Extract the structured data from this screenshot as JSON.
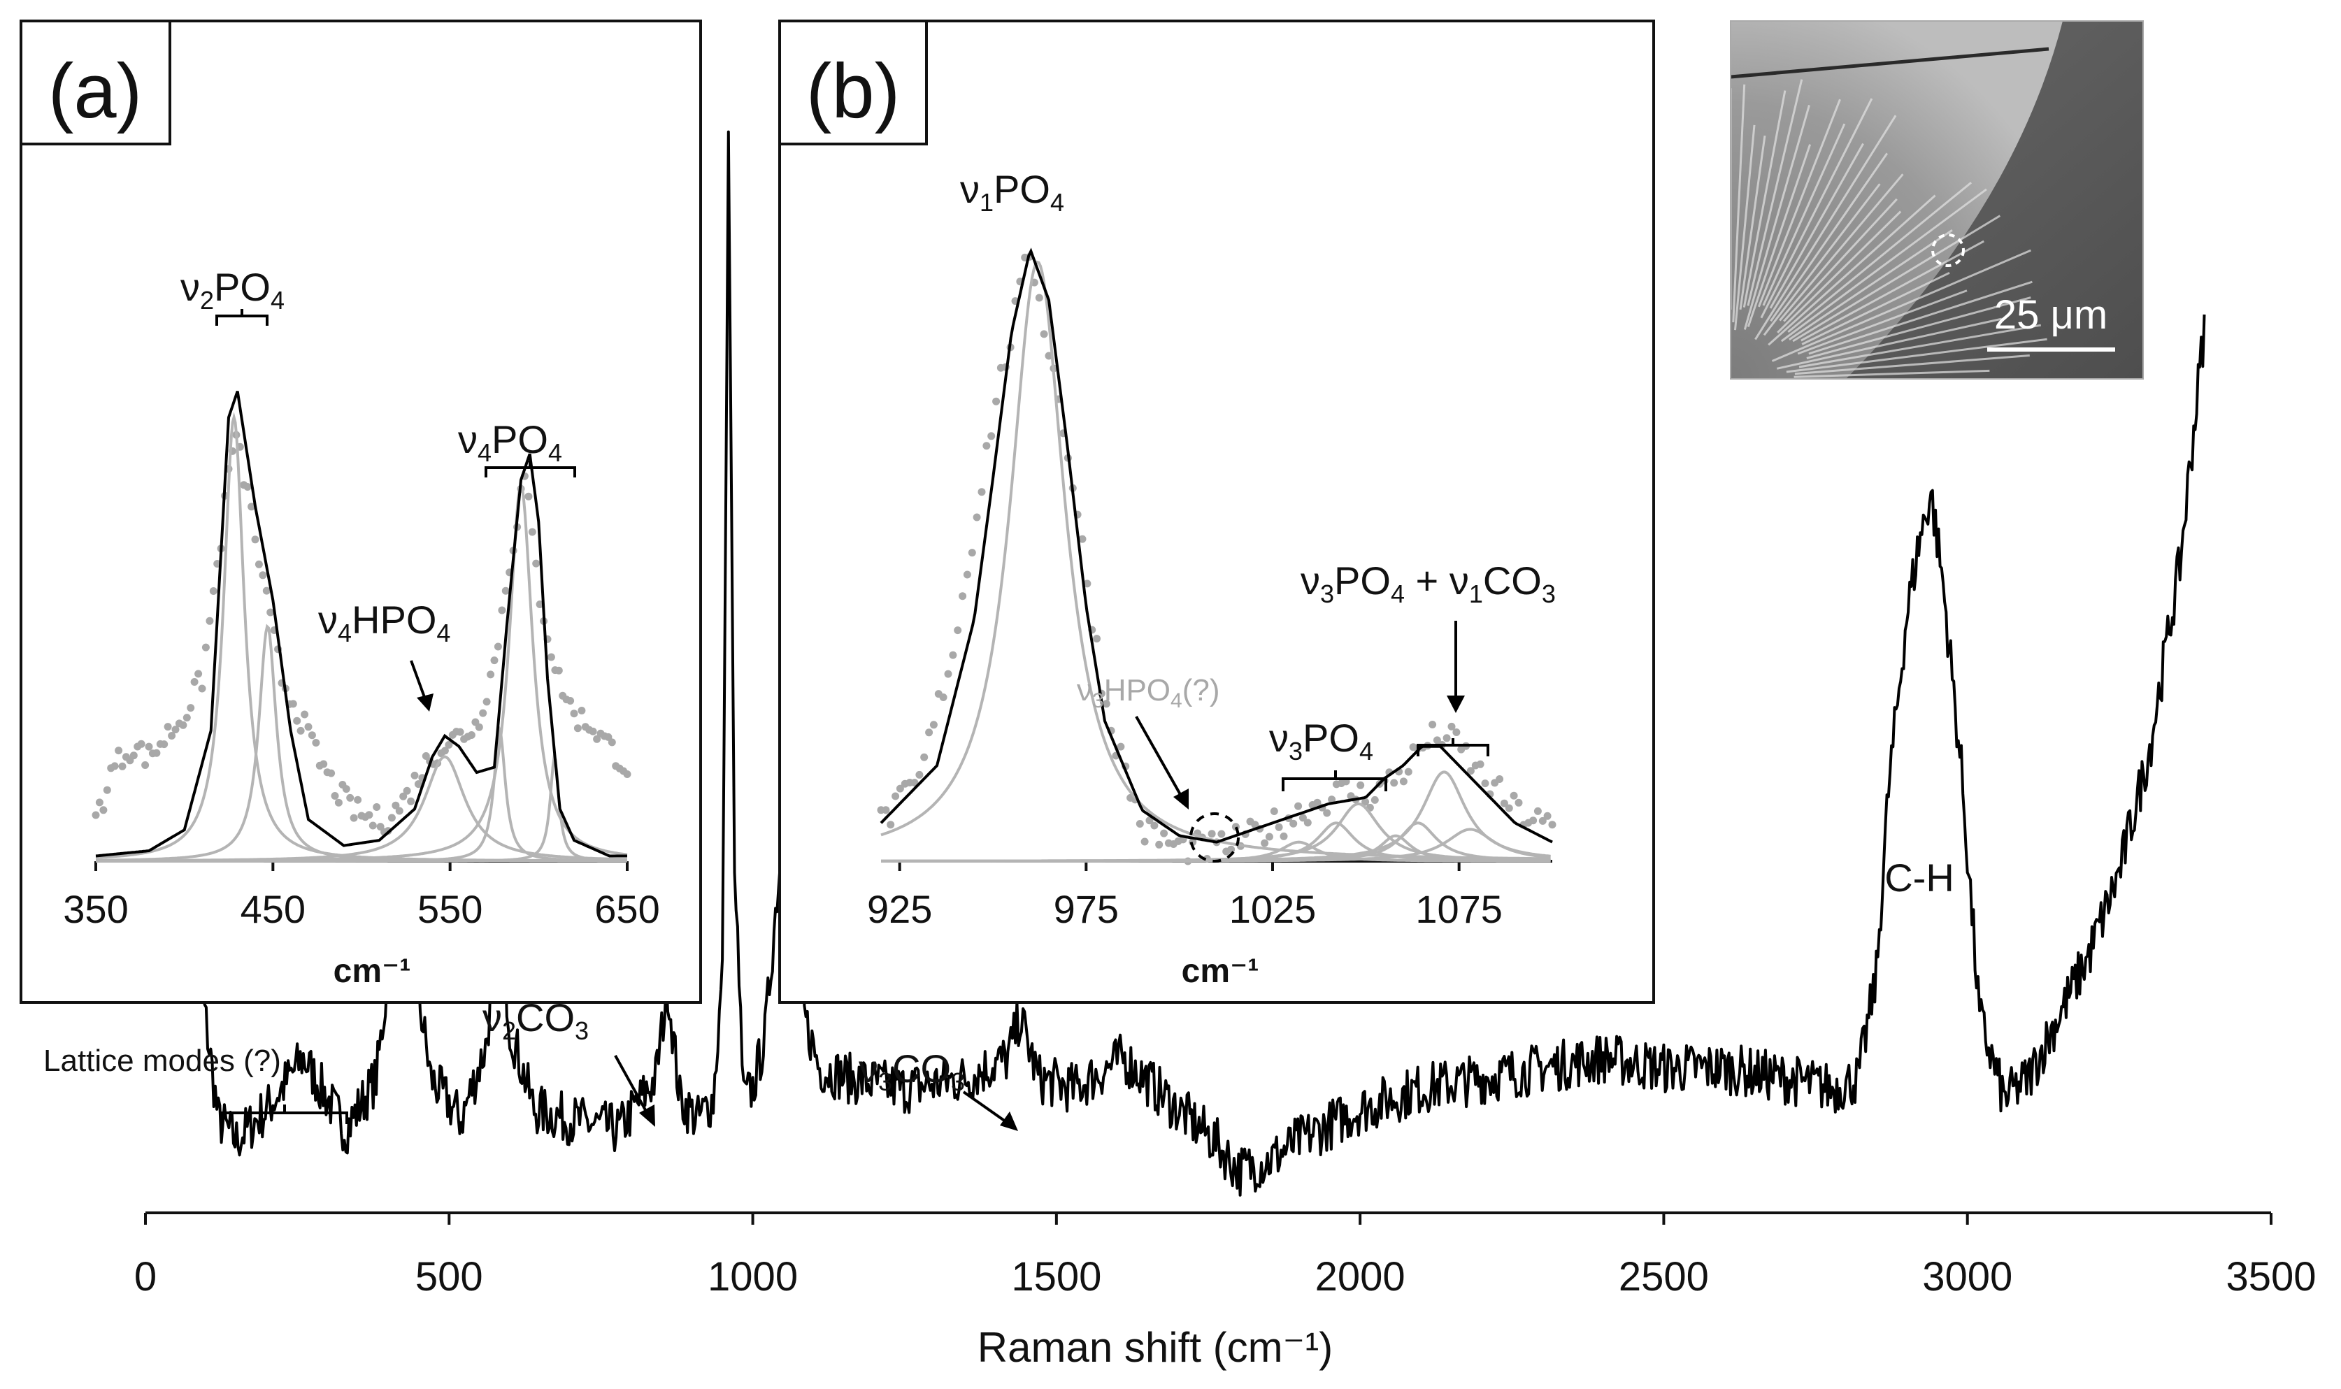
{
  "main": {
    "x_axis_label": "Raman shift (cm⁻¹)",
    "x_ticks": [
      "0",
      "500",
      "1000",
      "1500",
      "2000",
      "2500",
      "3000",
      "3500"
    ]
  },
  "annotations": {
    "lattice": "Lattice modes (?)",
    "v2co3": {
      "sym": "ν",
      "sub": "2",
      "mol": "CO",
      "sub2": "3"
    },
    "v3co3": {
      "sym": "ν",
      "sub": "3",
      "mol": "CO",
      "sub2": "3"
    },
    "ch": "C-H"
  },
  "panel_a": {
    "label": "(a)",
    "x_ticks": [
      "350",
      "450",
      "550",
      "650"
    ],
    "x_unit": "cm⁻¹",
    "v2po4": {
      "sym": "ν",
      "sub": "2",
      "mol": "PO",
      "sub2": "4"
    },
    "v4po4": {
      "sym": "ν",
      "sub": "4",
      "mol": "PO",
      "sub2": "4"
    },
    "v4hpo4": {
      "sym": "ν",
      "sub": "4",
      "mol": "HPO",
      "sub2": "4"
    }
  },
  "panel_b": {
    "label": "(b)",
    "x_ticks": [
      "925",
      "975",
      "1025",
      "1075"
    ],
    "x_unit": "cm⁻¹",
    "v1po4": {
      "sym": "ν",
      "sub": "1",
      "mol": "PO",
      "sub2": "4"
    },
    "v3hpo4": {
      "sym": "ν",
      "sub": "3",
      "mol": "HPO",
      "sub2": "4",
      "tail": "(?)"
    },
    "v3po4": {
      "sym": "ν",
      "sub": "3",
      "mol": "PO",
      "sub2": "4"
    },
    "v3po4_v1co3": {
      "sym": "ν",
      "sub": "3",
      "mol": "PO",
      "sub2": "4",
      "plus": " + ",
      "sym2": "ν",
      "sub3": "1",
      "mol2": "CO",
      "sub4": "3"
    }
  },
  "inset": {
    "scalebar": "25 μm"
  },
  "colors": {
    "trace": "#000000",
    "fit_component": "#b4b4b4",
    "raw_points": "#a8a8a8",
    "sem_background": "#5e5e5e"
  },
  "chart_data": [
    {
      "type": "line",
      "id": "main",
      "xlim": [
        0,
        3500
      ],
      "x": [
        70,
        90,
        120,
        150,
        200,
        260,
        330,
        380,
        410,
        425,
        440,
        470,
        520,
        560,
        585,
        600,
        640,
        700,
        780,
        840,
        860,
        880,
        910,
        935,
        950,
        960,
        970,
        985,
        1000,
        1020,
        1040,
        1060,
        1070,
        1085,
        1110,
        1160,
        1250,
        1350,
        1420,
        1440,
        1470,
        1530,
        1610,
        1700,
        1760,
        1800,
        1850,
        1900,
        2000,
        2100,
        2200,
        2300,
        2400,
        2500,
        2600,
        2700,
        2780,
        2820,
        2850,
        2870,
        2900,
        2920,
        2940,
        2960,
        2990,
        3020,
        3060,
        3100,
        3150,
        3200,
        3250,
        3300,
        3350,
        3390
      ],
      "y": [
        0.34,
        0.2,
        0.06,
        0.04,
        0.07,
        0.12,
        0.05,
        0.1,
        0.25,
        0.42,
        0.22,
        0.1,
        0.06,
        0.13,
        0.25,
        0.15,
        0.07,
        0.06,
        0.05,
        0.1,
        0.19,
        0.08,
        0.06,
        0.08,
        0.2,
        1.02,
        0.3,
        0.08,
        0.09,
        0.14,
        0.28,
        0.39,
        0.35,
        0.16,
        0.11,
        0.1,
        0.09,
        0.1,
        0.12,
        0.16,
        0.1,
        0.09,
        0.12,
        0.07,
        0.04,
        0.01,
        0.02,
        0.04,
        0.07,
        0.09,
        0.1,
        0.11,
        0.12,
        0.11,
        0.11,
        0.1,
        0.09,
        0.1,
        0.2,
        0.38,
        0.55,
        0.62,
        0.67,
        0.58,
        0.4,
        0.16,
        0.08,
        0.1,
        0.16,
        0.22,
        0.3,
        0.42,
        0.6,
        0.83
      ]
    },
    {
      "type": "line",
      "id": "panel_a",
      "xlim": [
        350,
        650
      ],
      "fit": {
        "x": [
          350,
          380,
          400,
          415,
          425,
          430,
          440,
          450,
          460,
          470,
          490,
          510,
          530,
          540,
          547,
          555,
          565,
          575,
          582,
          590,
          595,
          600,
          605,
          612,
          620,
          640,
          650
        ],
        "y": [
          0.01,
          0.02,
          0.06,
          0.25,
          0.85,
          0.9,
          0.68,
          0.5,
          0.25,
          0.08,
          0.03,
          0.04,
          0.1,
          0.2,
          0.24,
          0.22,
          0.17,
          0.18,
          0.45,
          0.73,
          0.78,
          0.65,
          0.35,
          0.1,
          0.04,
          0.01,
          0.01
        ]
      },
      "raw": {
        "x": [
          350,
          360,
          370,
          380,
          390,
          400,
          410,
          420,
          428,
          435,
          445,
          455,
          465,
          475,
          485,
          495,
          505,
          515,
          525,
          535,
          545,
          555,
          565,
          575,
          585,
          592,
          600,
          610,
          620,
          630,
          640,
          650
        ],
        "y": [
          0.08,
          0.18,
          0.22,
          0.2,
          0.24,
          0.28,
          0.35,
          0.6,
          0.82,
          0.72,
          0.52,
          0.35,
          0.28,
          0.2,
          0.14,
          0.1,
          0.08,
          0.08,
          0.12,
          0.18,
          0.22,
          0.24,
          0.26,
          0.38,
          0.6,
          0.74,
          0.52,
          0.36,
          0.28,
          0.26,
          0.22,
          0.18
        ]
      },
      "components": [
        {
          "center": 428,
          "amp": 0.85,
          "width": 7
        },
        {
          "center": 447,
          "amp": 0.45,
          "width": 6
        },
        {
          "center": 547,
          "amp": 0.2,
          "width": 14
        },
        {
          "center": 578,
          "amp": 0.25,
          "width": 4
        },
        {
          "center": 590,
          "amp": 0.72,
          "width": 8
        },
        {
          "center": 609,
          "amp": 0.2,
          "width": 3
        }
      ]
    },
    {
      "type": "line",
      "id": "panel_b",
      "xlim": [
        920,
        1100
      ],
      "fit": {
        "x": [
          920,
          935,
          945,
          950,
          955,
          960,
          965,
          970,
          975,
          980,
          990,
          1000,
          1010,
          1020,
          1030,
          1040,
          1050,
          1055,
          1060,
          1065,
          1070,
          1075,
          1080,
          1090,
          1100
        ],
        "y": [
          0.06,
          0.15,
          0.38,
          0.6,
          0.83,
          0.96,
          0.88,
          0.65,
          0.4,
          0.22,
          0.08,
          0.04,
          0.03,
          0.05,
          0.07,
          0.09,
          0.1,
          0.13,
          0.15,
          0.18,
          0.18,
          0.15,
          0.12,
          0.06,
          0.03
        ]
      },
      "raw": {
        "x": [
          920,
          930,
          940,
          950,
          960,
          970,
          980,
          990,
          1000,
          1005,
          1010,
          1020,
          1030,
          1040,
          1045,
          1050,
          1055,
          1060,
          1065,
          1070,
          1075,
          1080,
          1090,
          1100
        ],
        "y": [
          0.06,
          0.12,
          0.35,
          0.7,
          0.96,
          0.65,
          0.25,
          0.05,
          0.02,
          0.02,
          0.02,
          0.04,
          0.07,
          0.1,
          0.11,
          0.1,
          0.12,
          0.14,
          0.18,
          0.2,
          0.18,
          0.14,
          0.08,
          0.05
        ]
      },
      "components": [
        {
          "center": 962,
          "amp": 0.94,
          "width": 9
        },
        {
          "center": 1032,
          "amp": 0.03,
          "width": 6
        },
        {
          "center": 1042,
          "amp": 0.06,
          "width": 6
        },
        {
          "center": 1048,
          "amp": 0.09,
          "width": 7
        },
        {
          "center": 1058,
          "amp": 0.04,
          "width": 5
        },
        {
          "center": 1064,
          "amp": 0.06,
          "width": 6
        },
        {
          "center": 1071,
          "amp": 0.14,
          "width": 7
        },
        {
          "center": 1078,
          "amp": 0.05,
          "width": 8
        }
      ]
    }
  ]
}
